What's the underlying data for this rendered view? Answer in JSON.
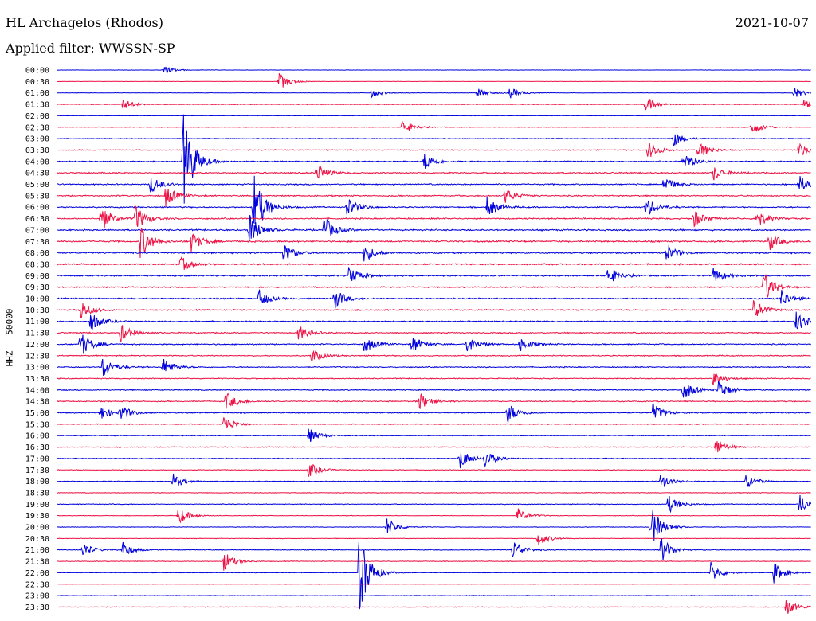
{
  "header": {
    "station": "HL Archagelos (Rhodos)",
    "date": "2021-10-07",
    "filter": "Applied filter: WWSSN-SP"
  },
  "chart_data": {
    "type": "line",
    "title": "HL Archagelos (Rhodos)",
    "date": "2021-10-07",
    "ylabel": "HHZ - 50000",
    "ticks": [
      "00:00",
      "00:30",
      "01:00",
      "01:30",
      "02:00",
      "02:30",
      "03:00",
      "03:30",
      "04:00",
      "04:30",
      "05:00",
      "05:30",
      "06:00",
      "06:30",
      "07:00",
      "07:30",
      "08:00",
      "08:30",
      "09:00",
      "09:30",
      "10:00",
      "10:30",
      "11:00",
      "11:30",
      "12:00",
      "12:30",
      "13:00",
      "13:30",
      "14:00",
      "14:30",
      "15:00",
      "15:30",
      "16:00",
      "16:30",
      "17:00",
      "17:30",
      "18:00",
      "18:30",
      "19:00",
      "19:30",
      "20:00",
      "20:30",
      "21:00",
      "21:30",
      "22:00",
      "22:30",
      "23:00",
      "23:30"
    ],
    "trace_colors": [
      "#0000dd",
      "#ee1144"
    ],
    "noise_level": [
      0.15,
      0.15,
      0.2,
      0.35,
      0.15,
      0.3,
      0.35,
      0.45,
      0.55,
      0.6,
      0.6,
      0.6,
      0.6,
      0.65,
      0.7,
      0.75,
      0.7,
      0.7,
      0.7,
      0.6,
      0.6,
      0.6,
      0.55,
      0.55,
      0.55,
      0.5,
      0.5,
      0.45,
      0.5,
      0.5,
      0.5,
      0.4,
      0.35,
      0.4,
      0.4,
      0.35,
      0.3,
      0.3,
      0.35,
      0.25,
      0.25,
      0.25,
      0.35,
      0.3,
      0.2,
      0.2,
      0.25,
      0.3
    ],
    "events": [
      {
        "row": 0,
        "minute": 4.2,
        "amplitude": 6
      },
      {
        "row": 1,
        "minute": 8.8,
        "amplitude": 12
      },
      {
        "row": 2,
        "minute": 12.5,
        "amplitude": 6
      },
      {
        "row": 2,
        "minute": 16.7,
        "amplitude": 6
      },
      {
        "row": 2,
        "minute": 18.0,
        "amplitude": 7
      },
      {
        "row": 2,
        "minute": 29.3,
        "amplitude": 7
      },
      {
        "row": 3,
        "minute": 2.6,
        "amplitude": 7
      },
      {
        "row": 3,
        "minute": 23.4,
        "amplitude": 10
      },
      {
        "row": 3,
        "minute": 29.7,
        "amplitude": 6
      },
      {
        "row": 5,
        "minute": 13.7,
        "amplitude": 10
      },
      {
        "row": 5,
        "minute": 27.6,
        "amplitude": 10
      },
      {
        "row": 6,
        "minute": 24.5,
        "amplitude": 10
      },
      {
        "row": 7,
        "minute": 23.5,
        "amplitude": 12
      },
      {
        "row": 7,
        "minute": 25.5,
        "amplitude": 12
      },
      {
        "row": 7,
        "minute": 29.5,
        "amplitude": 10
      },
      {
        "row": 8,
        "minute": 5.0,
        "amplitude": 65
      },
      {
        "row": 8,
        "minute": 14.6,
        "amplitude": 12
      },
      {
        "row": 8,
        "minute": 24.9,
        "amplitude": 12
      },
      {
        "row": 9,
        "minute": 10.3,
        "amplitude": 12
      },
      {
        "row": 9,
        "minute": 26.1,
        "amplitude": 10
      },
      {
        "row": 10,
        "minute": 3.7,
        "amplitude": 12
      },
      {
        "row": 10,
        "minute": 24.1,
        "amplitude": 12
      },
      {
        "row": 10,
        "minute": 29.5,
        "amplitude": 12
      },
      {
        "row": 11,
        "minute": 4.3,
        "amplitude": 14
      },
      {
        "row": 11,
        "minute": 17.8,
        "amplitude": 10
      },
      {
        "row": 12,
        "minute": 7.8,
        "amplitude": 45
      },
      {
        "row": 12,
        "minute": 11.5,
        "amplitude": 14
      },
      {
        "row": 12,
        "minute": 17.1,
        "amplitude": 14
      },
      {
        "row": 12,
        "minute": 23.4,
        "amplitude": 14
      },
      {
        "row": 13,
        "minute": 1.7,
        "amplitude": 18
      },
      {
        "row": 13,
        "minute": 3.1,
        "amplitude": 18
      },
      {
        "row": 13,
        "minute": 25.3,
        "amplitude": 12
      },
      {
        "row": 13,
        "minute": 27.8,
        "amplitude": 14
      },
      {
        "row": 14,
        "minute": 7.6,
        "amplitude": 22
      },
      {
        "row": 14,
        "minute": 10.6,
        "amplitude": 18
      },
      {
        "row": 15,
        "minute": 3.3,
        "amplitude": 22
      },
      {
        "row": 15,
        "minute": 5.3,
        "amplitude": 14
      },
      {
        "row": 15,
        "minute": 28.3,
        "amplitude": 12
      },
      {
        "row": 16,
        "minute": 9.0,
        "amplitude": 12
      },
      {
        "row": 16,
        "minute": 12.2,
        "amplitude": 12
      },
      {
        "row": 16,
        "minute": 24.2,
        "amplitude": 12
      },
      {
        "row": 16,
        "minute": 31.3,
        "amplitude": 14
      },
      {
        "row": 17,
        "minute": 4.9,
        "amplitude": 10
      },
      {
        "row": 18,
        "minute": 11.6,
        "amplitude": 12
      },
      {
        "row": 18,
        "minute": 21.9,
        "amplitude": 12
      },
      {
        "row": 18,
        "minute": 26.1,
        "amplitude": 10
      },
      {
        "row": 19,
        "minute": 28.1,
        "amplitude": 22
      },
      {
        "row": 20,
        "minute": 8.0,
        "amplitude": 12
      },
      {
        "row": 20,
        "minute": 11.0,
        "amplitude": 14
      },
      {
        "row": 20,
        "minute": 28.8,
        "amplitude": 12
      },
      {
        "row": 21,
        "minute": 0.9,
        "amplitude": 14
      },
      {
        "row": 21,
        "minute": 27.7,
        "amplitude": 14
      },
      {
        "row": 22,
        "minute": 1.3,
        "amplitude": 14
      },
      {
        "row": 22,
        "minute": 29.4,
        "amplitude": 14
      },
      {
        "row": 23,
        "minute": 2.5,
        "amplitude": 12
      },
      {
        "row": 23,
        "minute": 9.6,
        "amplitude": 10
      },
      {
        "row": 24,
        "minute": 0.9,
        "amplitude": 18
      },
      {
        "row": 24,
        "minute": 12.2,
        "amplitude": 12
      },
      {
        "row": 24,
        "minute": 14.1,
        "amplitude": 12
      },
      {
        "row": 24,
        "minute": 16.3,
        "amplitude": 12
      },
      {
        "row": 24,
        "minute": 18.4,
        "amplitude": 10
      },
      {
        "row": 25,
        "minute": 10.1,
        "amplitude": 10
      },
      {
        "row": 26,
        "minute": 1.8,
        "amplitude": 14
      },
      {
        "row": 26,
        "minute": 4.2,
        "amplitude": 12
      },
      {
        "row": 27,
        "minute": 26.1,
        "amplitude": 10
      },
      {
        "row": 28,
        "minute": 24.9,
        "amplitude": 14
      },
      {
        "row": 28,
        "minute": 26.3,
        "amplitude": 12
      },
      {
        "row": 29,
        "minute": 6.7,
        "amplitude": 12
      },
      {
        "row": 29,
        "minute": 14.4,
        "amplitude": 12
      },
      {
        "row": 30,
        "minute": 1.7,
        "amplitude": 10
      },
      {
        "row": 30,
        "minute": 2.5,
        "amplitude": 10
      },
      {
        "row": 30,
        "minute": 17.9,
        "amplitude": 14
      },
      {
        "row": 30,
        "minute": 23.7,
        "amplitude": 12
      },
      {
        "row": 31,
        "minute": 6.6,
        "amplitude": 12
      },
      {
        "row": 32,
        "minute": 10.0,
        "amplitude": 10
      },
      {
        "row": 33,
        "minute": 26.2,
        "amplitude": 12
      },
      {
        "row": 34,
        "minute": 16.0,
        "amplitude": 14
      },
      {
        "row": 34,
        "minute": 17.0,
        "amplitude": 12
      },
      {
        "row": 35,
        "minute": 10.0,
        "amplitude": 10
      },
      {
        "row": 36,
        "minute": 4.6,
        "amplitude": 10
      },
      {
        "row": 36,
        "minute": 24.0,
        "amplitude": 10
      },
      {
        "row": 36,
        "minute": 27.4,
        "amplitude": 10
      },
      {
        "row": 38,
        "minute": 24.3,
        "amplitude": 12
      },
      {
        "row": 38,
        "minute": 29.5,
        "amplitude": 14
      },
      {
        "row": 39,
        "minute": 4.8,
        "amplitude": 12
      },
      {
        "row": 39,
        "minute": 18.3,
        "amplitude": 10
      },
      {
        "row": 40,
        "minute": 13.1,
        "amplitude": 12
      },
      {
        "row": 40,
        "minute": 23.6,
        "amplitude": 28
      },
      {
        "row": 41,
        "minute": 19.1,
        "amplitude": 10
      },
      {
        "row": 41,
        "minute": 30.5,
        "amplitude": 10
      },
      {
        "row": 42,
        "minute": 1.0,
        "amplitude": 10
      },
      {
        "row": 42,
        "minute": 2.6,
        "amplitude": 10
      },
      {
        "row": 42,
        "minute": 18.1,
        "amplitude": 14
      },
      {
        "row": 42,
        "minute": 24.0,
        "amplitude": 18
      },
      {
        "row": 43,
        "minute": 6.6,
        "amplitude": 14
      },
      {
        "row": 44,
        "minute": 12.0,
        "amplitude": 55
      },
      {
        "row": 44,
        "minute": 26.0,
        "amplitude": 14
      },
      {
        "row": 44,
        "minute": 28.5,
        "amplitude": 14
      },
      {
        "row": 47,
        "minute": 29.0,
        "amplitude": 10
      }
    ]
  }
}
